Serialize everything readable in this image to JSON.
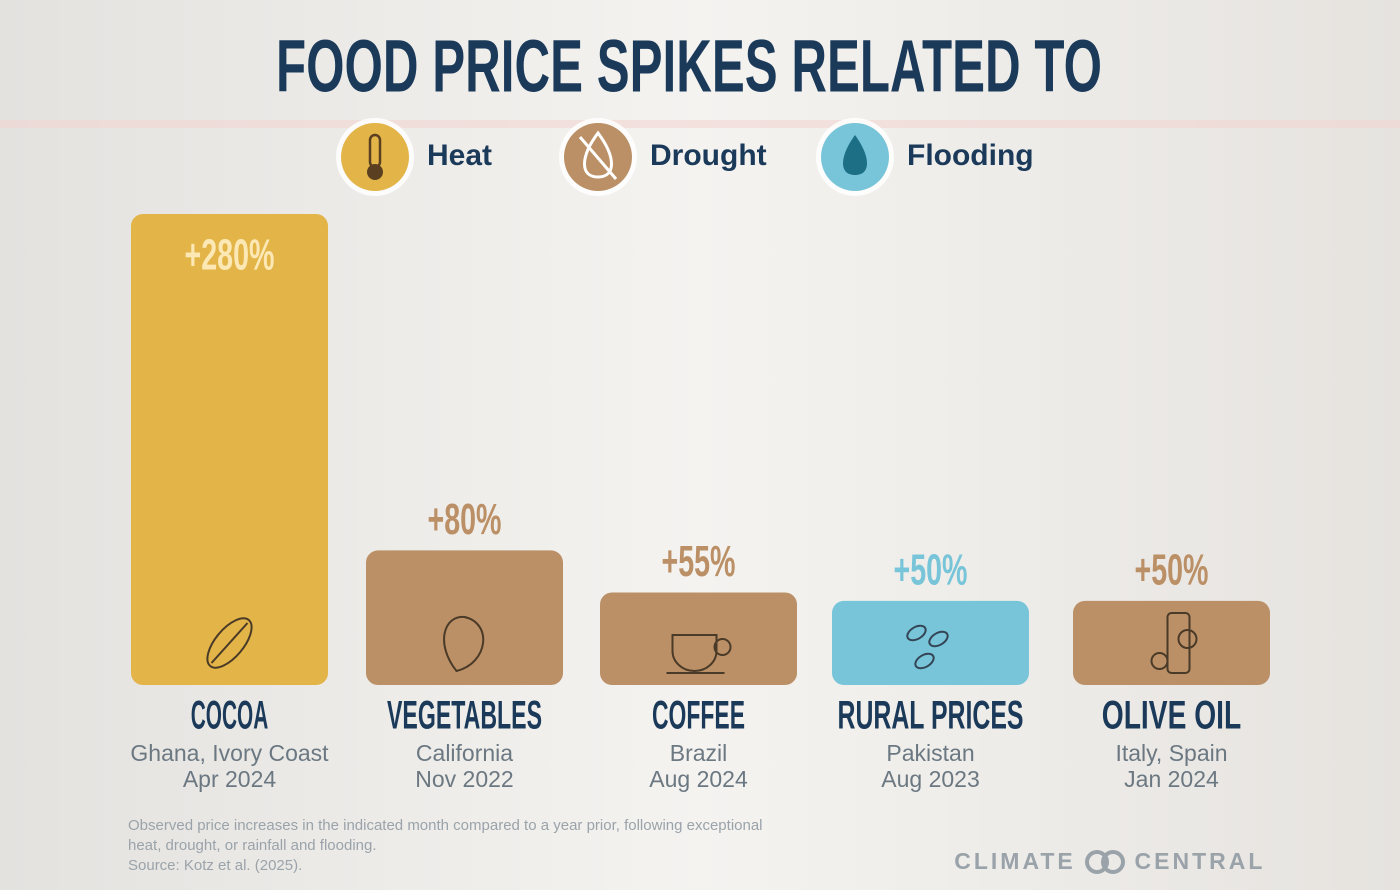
{
  "chart_data": {
    "type": "bar",
    "title": "FOOD PRICE SPIKES RELATED TO",
    "legend": [
      {
        "name": "Heat",
        "color": "#e3b447"
      },
      {
        "name": "Drought",
        "color": "#bb9066"
      },
      {
        "name": "Flooding",
        "color": "#78c5d9"
      }
    ],
    "categories": [
      "COCOA",
      "VEGETABLES",
      "COFFEE",
      "RURAL PRICES",
      "OLIVE OIL"
    ],
    "locations": [
      "Ghana, Ivory Coast",
      "California",
      "Brazil",
      "Pakistan",
      "Italy, Spain"
    ],
    "dates": [
      "Apr 2024",
      "Nov 2022",
      "Aug 2024",
      "Aug 2023",
      "Jan 2024"
    ],
    "values": [
      280,
      80,
      55,
      50,
      50
    ],
    "value_labels": [
      "+280%",
      "+80%",
      "+55%",
      "+50%",
      "+50%"
    ],
    "colors": [
      "#e3b447",
      "#bb9066",
      "#bb9066",
      "#78c5d9",
      "#bb9066"
    ],
    "note": [
      "Observed price increases in the indicated month compared to a year prior, following exceptional",
      "heat, drought, or rainfall and flooding.",
      "Source: Kotz et al. (2025)."
    ],
    "credit": "CLIMATE CENTRAL"
  }
}
